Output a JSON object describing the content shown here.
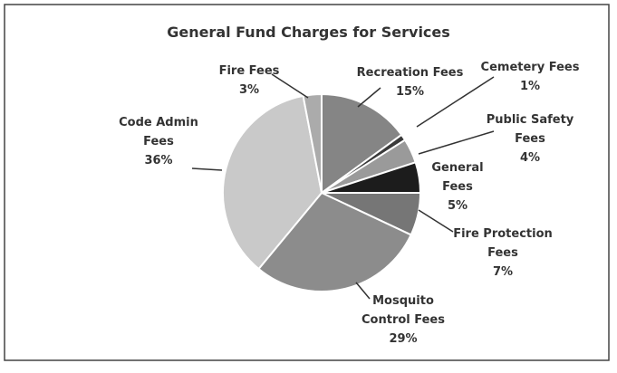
{
  "chart_data": {
    "type": "pie",
    "title": "General Fund Charges for Services",
    "categories": [
      "Recreation Fees",
      "Cemetery Fees",
      "Public Safety Fees",
      "General Fees",
      "Fire Protection Fees",
      "Mosquito Control Fees",
      "Code Admin Fees",
      "Fire Fees"
    ],
    "values": [
      15,
      1,
      4,
      5,
      7,
      29,
      36,
      3
    ],
    "value_labels": [
      "15%",
      "1%",
      "4%",
      "5%",
      "7%",
      "29%",
      "36%",
      "3%"
    ],
    "colors": [
      "#858585",
      "#3a3a3a",
      "#9a9a9a",
      "#1c1c1c",
      "#767676",
      "#8c8c8c",
      "#c9c9c9",
      "#ababab"
    ]
  }
}
